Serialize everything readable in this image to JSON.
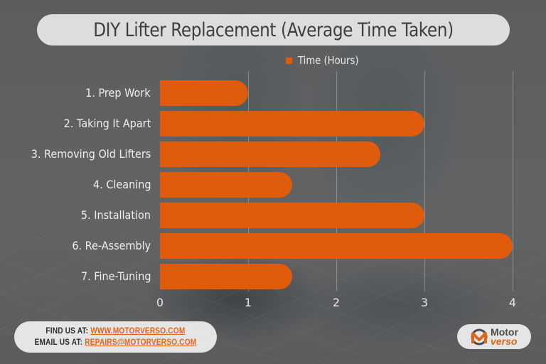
{
  "title": "DIY Lifter Replacement (Average Time Taken)",
  "legend": {
    "label": "Time (Hours)",
    "icon": "square-swatch-icon"
  },
  "colors": {
    "bar": "#e05c0c",
    "title_text": "#3e3e3e",
    "link": "#e0661a",
    "background": "#5e6062"
  },
  "axis": {
    "ticks": [
      "0",
      "1",
      "2",
      "3",
      "4"
    ]
  },
  "categories": [
    "1. Prep Work",
    "2. Taking It Apart",
    "3. Removing Old Lifters",
    "4. Cleaning",
    "5. Installation",
    "6. Re-Assembly",
    "7. Fine-Tuning"
  ],
  "footer": {
    "find_label": "FIND US AT: ",
    "find_link": "WWW.MOTORVERSO.COM",
    "email_label": "EMAIL US AT: ",
    "email_link": "REPAIRS@MOTORVERSO.COM"
  },
  "logo": {
    "line1": "Motor",
    "line2": "verso"
  },
  "chart_data": {
    "type": "bar",
    "orientation": "horizontal",
    "title": "DIY Lifter Replacement (Average Time Taken)",
    "categories": [
      "1. Prep Work",
      "2. Taking It Apart",
      "3. Removing Old Lifters",
      "4. Cleaning",
      "5. Installation",
      "6. Re-Assembly",
      "7. Fine-Tuning"
    ],
    "series": [
      {
        "name": "Time (Hours)",
        "values": [
          1,
          3,
          2.5,
          1.5,
          3,
          4,
          1.5
        ],
        "color": "#e05c0c"
      }
    ],
    "xlabel": "",
    "ylabel": "",
    "xlim": [
      0,
      4
    ],
    "xticks": [
      0,
      1,
      2,
      3,
      4
    ],
    "grid": "vertical",
    "legend_position": "top"
  }
}
